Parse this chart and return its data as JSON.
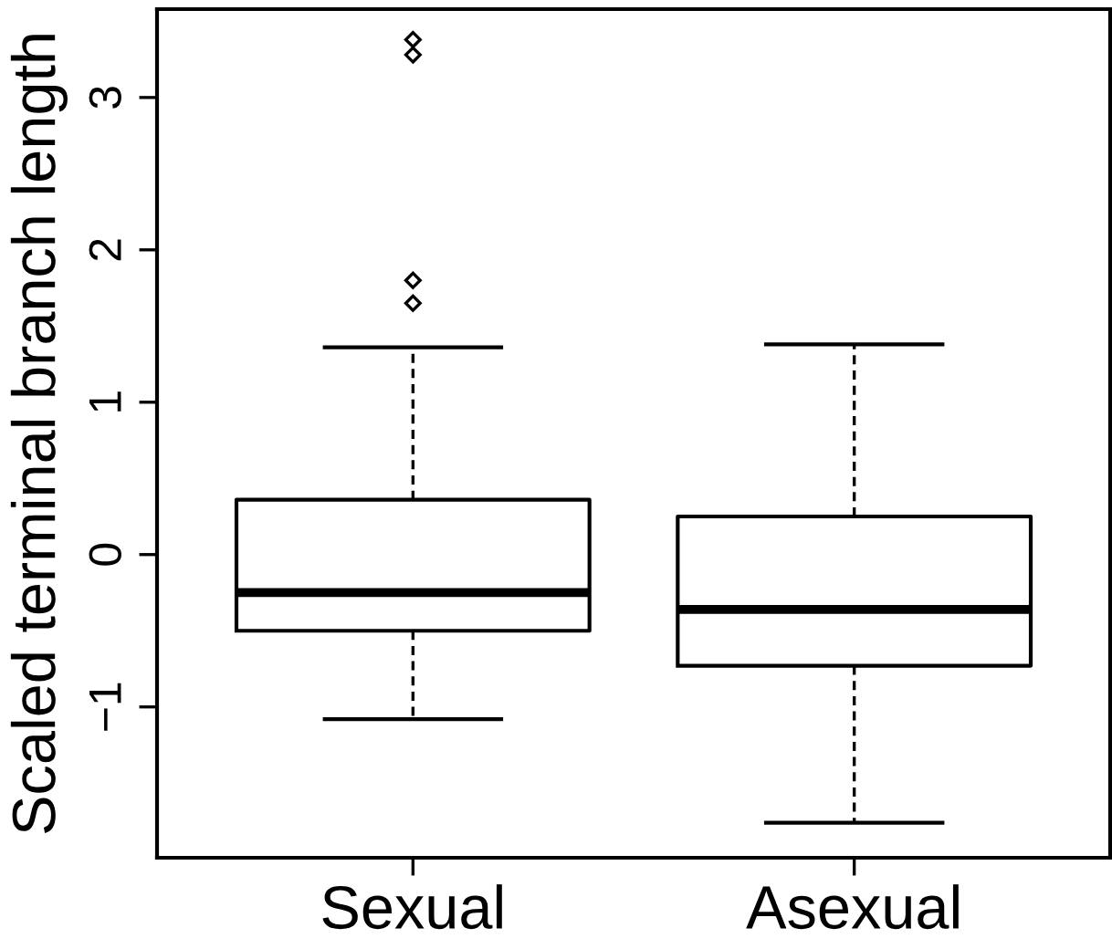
{
  "chart_data": {
    "type": "box",
    "ylabel": "Scaled terminal branch length",
    "categories": [
      "Sexual",
      "Asexual"
    ],
    "boxes": [
      {
        "low": -1.08,
        "q1": -0.5,
        "median": -0.25,
        "q3": 0.36,
        "high": 1.36,
        "outliers": [
          3.38,
          3.28,
          1.8,
          1.65
        ]
      },
      {
        "low": -1.76,
        "q1": -0.73,
        "median": -0.36,
        "q3": 0.25,
        "high": 1.38
      }
    ],
    "color": "#000000",
    "ylim": [
      -1.99,
      3.58
    ],
    "yticks": [
      -1,
      0,
      1,
      2,
      3
    ],
    "grid": false,
    "legend": false
  }
}
